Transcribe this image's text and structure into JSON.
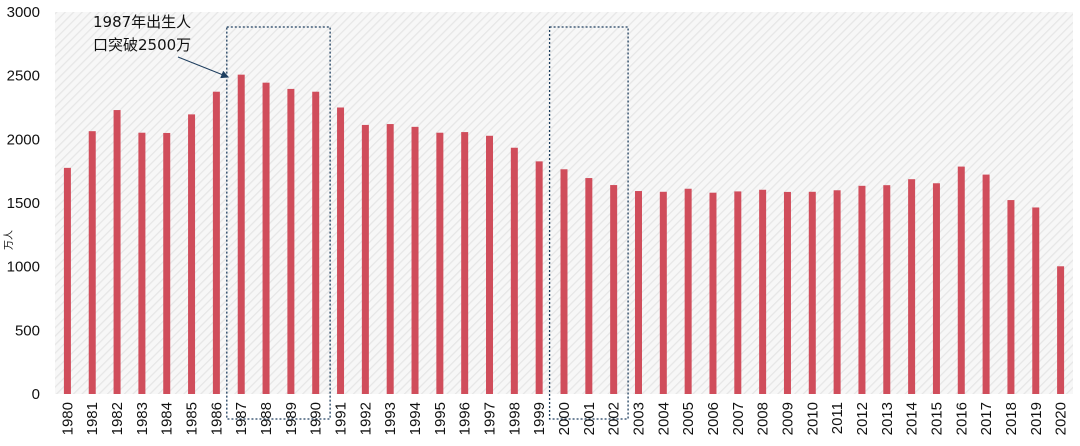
{
  "chart_data": {
    "type": "bar",
    "ylabel": "万人",
    "ylim": [
      0,
      3000
    ],
    "yticks": [
      0,
      500,
      1000,
      1500,
      2000,
      2500,
      3000
    ],
    "categories": [
      "1980",
      "1981",
      "1982",
      "1983",
      "1984",
      "1985",
      "1986",
      "1987",
      "1988",
      "1989",
      "1990",
      "1991",
      "1992",
      "1993",
      "1994",
      "1995",
      "1996",
      "1997",
      "1998",
      "1999",
      "2000",
      "2001",
      "2002",
      "2003",
      "2004",
      "2005",
      "2006",
      "2007",
      "2008",
      "2009",
      "2010",
      "2011",
      "2012",
      "2013",
      "2014",
      "2015",
      "2016",
      "2017",
      "2018",
      "2019",
      "2020"
    ],
    "values": [
      1776,
      2064,
      2230,
      2052,
      2050,
      2196,
      2374,
      2508,
      2445,
      2396,
      2374,
      2250,
      2113,
      2120,
      2098,
      2052,
      2057,
      2028,
      1934,
      1827,
      1765,
      1696,
      1641,
      1594,
      1588,
      1612,
      1581,
      1591,
      1604,
      1587,
      1588,
      1600,
      1635,
      1640,
      1687,
      1655,
      1786,
      1723,
      1523,
      1465,
      1003
    ],
    "bar_color": "#d04d5b",
    "highlight_boxes": [
      {
        "from": "1987",
        "to": "1990"
      },
      {
        "from": "2000",
        "to": "2002"
      }
    ],
    "annotation": {
      "line1": "1987年出生人",
      "line2": "口突破2500万",
      "target": "1987"
    },
    "grid": false
  }
}
